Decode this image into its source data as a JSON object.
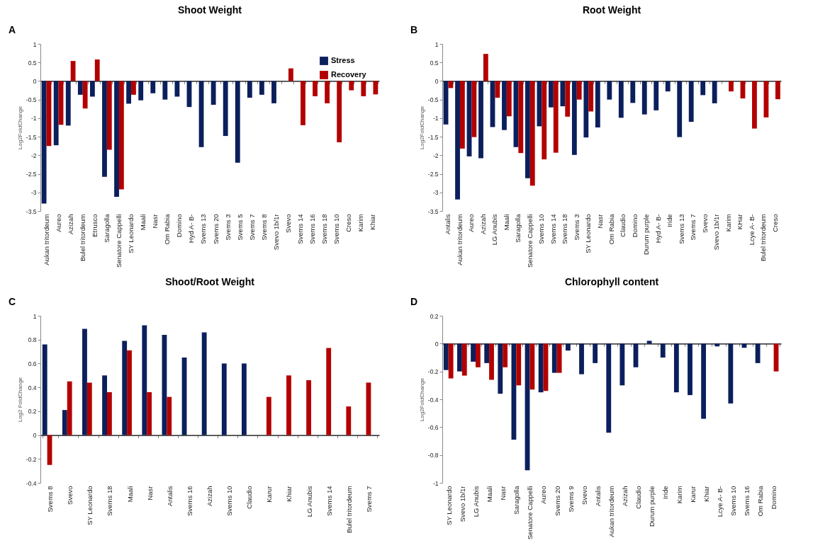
{
  "chart_data": [
    {
      "type": "bar",
      "title": "Shoot Weight",
      "ylabel": "Log2FoldChange",
      "annotations": [
        "A"
      ],
      "legend": "top right",
      "ylim": [
        -3.5,
        1
      ],
      "yticks": [
        -3.5,
        -3,
        -2.5,
        -2,
        -1.5,
        -1,
        -0.5,
        0,
        0.5,
        1
      ],
      "categories": [
        "Aukan tritordeum",
        "Aureo",
        "Azizah",
        "Bulel tritordeum",
        "Etrusco",
        "Saragolla",
        "Senatore Cappelli",
        "SY Leonardo",
        "Maali",
        "Nasr",
        "Om Rabia",
        "Domino",
        "Hyd A- B-",
        "Svems 13",
        "Svems 20",
        "Svems 3",
        "Svems 5",
        "Svems 7",
        "Svems 8",
        "Svevo 1b/1r",
        "Svevo",
        "Svems 14",
        "Svems 16",
        "Svems 18",
        "Svems 10",
        "Creso",
        "Karim",
        "Khiar"
      ],
      "series": [
        {
          "name": "Stress",
          "color": "#0b1f5c",
          "values": [
            -3.3,
            -1.73,
            -1.2,
            -0.37,
            -0.42,
            -2.58,
            -3.12,
            -0.61,
            -0.52,
            -0.33,
            -0.5,
            -0.42,
            -0.7,
            -1.78,
            -0.64,
            -1.48,
            -2.2,
            -0.45,
            -0.37,
            -0.6,
            null,
            null,
            null,
            null,
            null,
            null,
            null,
            null
          ]
        },
        {
          "name": "Recovery",
          "color": "#b30000",
          "values": [
            -1.75,
            -1.18,
            0.54,
            -0.74,
            0.58,
            -1.85,
            -2.92,
            -0.37,
            null,
            null,
            null,
            null,
            null,
            null,
            null,
            null,
            null,
            null,
            null,
            null,
            0.34,
            -1.19,
            -0.41,
            -0.6,
            -1.65,
            -0.25,
            -0.41,
            -0.36
          ]
        }
      ]
    },
    {
      "type": "bar",
      "title": "Root Weight",
      "ylabel": "Log2FoldChange",
      "annotations": [
        "B"
      ],
      "ylim": [
        -3.5,
        1
      ],
      "yticks": [
        -3.5,
        -3,
        -2.5,
        -2,
        -1.5,
        -1,
        -0.5,
        0,
        0.5,
        1
      ],
      "categories": [
        "Antalis",
        "Aukan tritordeum",
        "Aureo",
        "Azizah",
        "LG Anubis",
        "Maali",
        "Saragolla",
        "Senatore Cappelli",
        "Svems 10",
        "Svems 14",
        "Svems 18",
        "Svems 3",
        "SY Leonardo",
        "Nasr",
        "Om Rabia",
        "Claudio",
        "Domino",
        "Durum purple",
        "Hyd A- B-",
        "Iride",
        "Svems 13",
        "Svems 7",
        "Svevo",
        "Svevo 1b/1r",
        "Karim",
        "KHar",
        "Lcye A- B-",
        "Bulel tritordeum",
        "Creso"
      ],
      "series": [
        {
          "color": "#0b1f5c",
          "values": [
            -1.17,
            -3.19,
            -2.03,
            -2.08,
            -1.24,
            -1.32,
            -1.78,
            -2.62,
            -1.22,
            -0.71,
            -0.68,
            -1.99,
            -1.52,
            -1.25,
            -0.5,
            -0.99,
            -0.59,
            -0.9,
            -0.79,
            -0.28,
            -1.51,
            -1.1,
            -0.38,
            -0.6,
            null,
            null,
            null,
            null,
            null
          ]
        },
        {
          "color": "#b30000",
          "values": [
            -0.19,
            -1.82,
            -1.51,
            0.73,
            -0.45,
            -0.95,
            -1.94,
            -2.82,
            -2.11,
            -1.93,
            -0.96,
            -0.5,
            -0.82,
            null,
            null,
            null,
            null,
            null,
            null,
            null,
            null,
            null,
            null,
            null,
            -0.28,
            -0.47,
            -1.28,
            -0.98,
            -0.49
          ]
        }
      ]
    },
    {
      "type": "bar",
      "title": "Shoot/Root Weight",
      "ylabel": "Log2 FoldChange",
      "annotations": [
        "C"
      ],
      "ylim": [
        -0.4,
        1
      ],
      "yticks": [
        -0.4,
        -0.2,
        0,
        0.2,
        0.4,
        0.6,
        0.8,
        1
      ],
      "categories": [
        "Svems 8",
        "Svevo",
        "SY Leonardo",
        "Svems 18",
        "Maali",
        "Nasr",
        "Antalis",
        "Svems 16",
        "Azizah",
        "Svems 10",
        "Claudio",
        "Karur",
        "Khiar",
        "LG Anubis",
        "Svems 14",
        "Bulel tritordeum",
        "Svems 7"
      ],
      "series": [
        {
          "color": "#0b1f5c",
          "values": [
            0.76,
            0.21,
            0.89,
            0.5,
            0.79,
            0.92,
            0.84,
            0.65,
            0.86,
            0.6,
            0.6,
            null,
            null,
            null,
            null,
            null,
            null
          ]
        },
        {
          "color": "#b30000",
          "values": [
            -0.25,
            0.45,
            0.44,
            0.36,
            0.71,
            0.36,
            0.32,
            null,
            null,
            null,
            null,
            0.32,
            0.5,
            0.46,
            0.73,
            0.24,
            0.44
          ]
        }
      ]
    },
    {
      "type": "bar",
      "title": "Chlorophyll content",
      "ylabel": "Log2FoldChange",
      "annotations": [
        "D"
      ],
      "ylim": [
        -1,
        0.2
      ],
      "yticks": [
        -1,
        -0.8,
        -0.6,
        -0.4,
        -0.2,
        0,
        0.2
      ],
      "categories": [
        "SY Leonardo",
        "Svevo 1b/1r",
        "LG Anubis",
        "Maali",
        "Nasr",
        "Saragolla",
        "Senatore Cappelli",
        "Aureo",
        "Svems 20",
        "Svems 9",
        "Svevo",
        "Antalis",
        "Aukan tritordeum",
        "Azizah",
        "Claudio",
        "Durum purple",
        "Iride",
        "Karim",
        "Karur",
        "Khiar",
        "Lcye A- B-",
        "Svems 10",
        "Svems 16",
        "Om Rabia",
        "Domino"
      ],
      "series": [
        {
          "color": "#0b1f5c",
          "values": [
            -0.19,
            -0.2,
            -0.13,
            -0.14,
            -0.36,
            -0.69,
            -0.91,
            -0.35,
            -0.21,
            -0.05,
            -0.22,
            -0.14,
            -0.64,
            -0.3,
            -0.17,
            0.02,
            -0.1,
            -0.35,
            -0.37,
            -0.54,
            -0.02,
            -0.43,
            -0.03,
            -0.14,
            null
          ]
        },
        {
          "color": "#b30000",
          "values": [
            -0.25,
            -0.23,
            -0.17,
            -0.26,
            -0.17,
            -0.3,
            -0.33,
            -0.34,
            -0.21,
            null,
            null,
            null,
            null,
            null,
            null,
            null,
            null,
            null,
            null,
            null,
            null,
            null,
            null,
            null,
            -0.2
          ]
        }
      ]
    }
  ]
}
